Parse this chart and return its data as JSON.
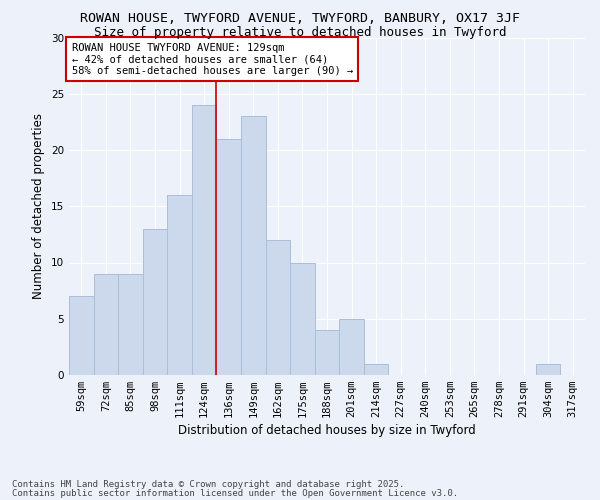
{
  "title1": "ROWAN HOUSE, TWYFORD AVENUE, TWYFORD, BANBURY, OX17 3JF",
  "title2": "Size of property relative to detached houses in Twyford",
  "xlabel": "Distribution of detached houses by size in Twyford",
  "ylabel": "Number of detached properties",
  "categories": [
    "59sqm",
    "72sqm",
    "85sqm",
    "98sqm",
    "111sqm",
    "124sqm",
    "136sqm",
    "149sqm",
    "162sqm",
    "175sqm",
    "188sqm",
    "201sqm",
    "214sqm",
    "227sqm",
    "240sqm",
    "253sqm",
    "265sqm",
    "278sqm",
    "291sqm",
    "304sqm",
    "317sqm"
  ],
  "values": [
    7,
    9,
    9,
    13,
    16,
    24,
    21,
    23,
    12,
    10,
    4,
    5,
    1,
    0,
    0,
    0,
    0,
    0,
    0,
    1,
    0
  ],
  "bar_color": "#ccd9ed",
  "bar_edgecolor": "#aabfd8",
  "property_line_x": 5.5,
  "annotation_text": "ROWAN HOUSE TWYFORD AVENUE: 129sqm\n← 42% of detached houses are smaller (64)\n58% of semi-detached houses are larger (90) →",
  "annotation_box_facecolor": "#ffffff",
  "annotation_box_edgecolor": "#cc0000",
  "vline_color": "#cc0000",
  "ylim": [
    0,
    30
  ],
  "yticks": [
    0,
    5,
    10,
    15,
    20,
    25,
    30
  ],
  "background_color": "#edf1f9",
  "grid_color": "#ffffff",
  "footer1": "Contains HM Land Registry data © Crown copyright and database right 2025.",
  "footer2": "Contains public sector information licensed under the Open Government Licence v3.0.",
  "title_fontsize": 9.5,
  "subtitle_fontsize": 9,
  "axis_label_fontsize": 8.5,
  "tick_fontsize": 7.5,
  "annotation_fontsize": 7.5,
  "footer_fontsize": 6.5
}
